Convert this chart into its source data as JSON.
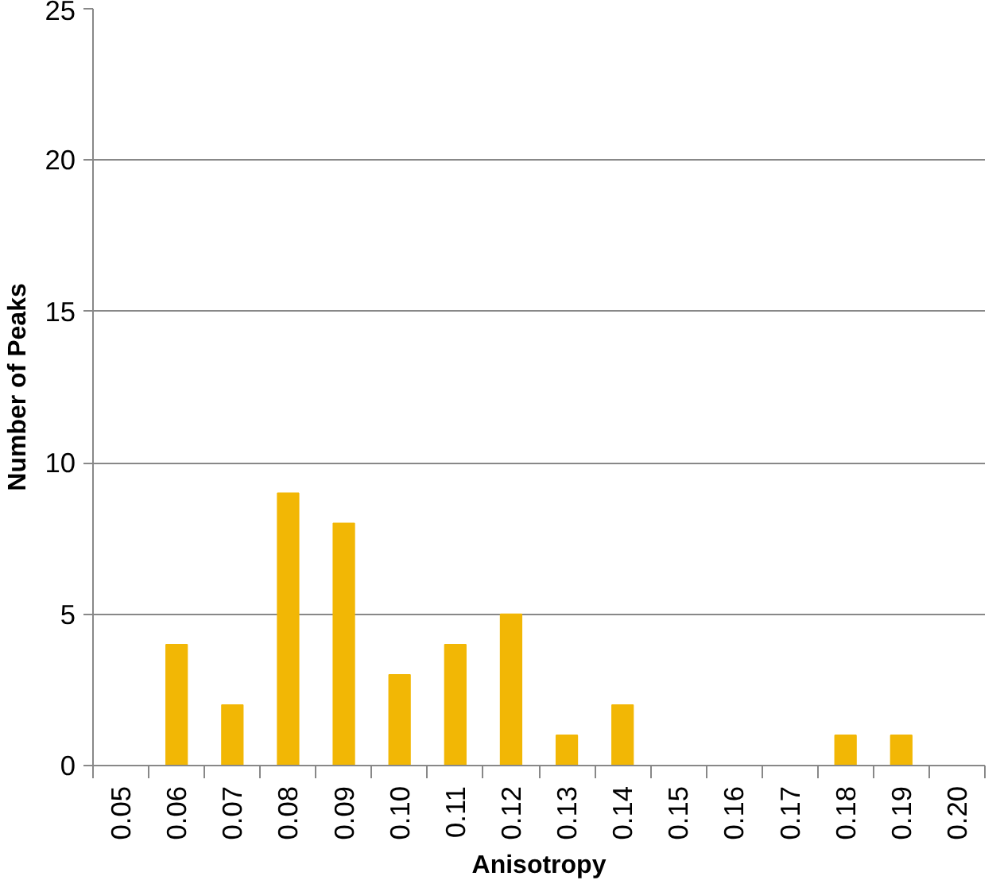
{
  "chart_data": {
    "type": "bar",
    "xlabel": "Anisotropy",
    "ylabel": "Number of Peaks",
    "categories": [
      "0.05",
      "0.06",
      "0.07",
      "0.08",
      "0.09",
      "0.10",
      "0.11",
      "0.12",
      "0.13",
      "0.14",
      "0.15",
      "0.16",
      "0.17",
      "0.18",
      "0.19",
      "0.20"
    ],
    "values": [
      0,
      4,
      2,
      9,
      8,
      3,
      4,
      5,
      1,
      2,
      0,
      0,
      0,
      1,
      1,
      0
    ],
    "color": "#f2b705",
    "ylim": [
      0,
      25
    ],
    "yticks": [
      0,
      5,
      10,
      15,
      20,
      25
    ],
    "grid": "y"
  }
}
